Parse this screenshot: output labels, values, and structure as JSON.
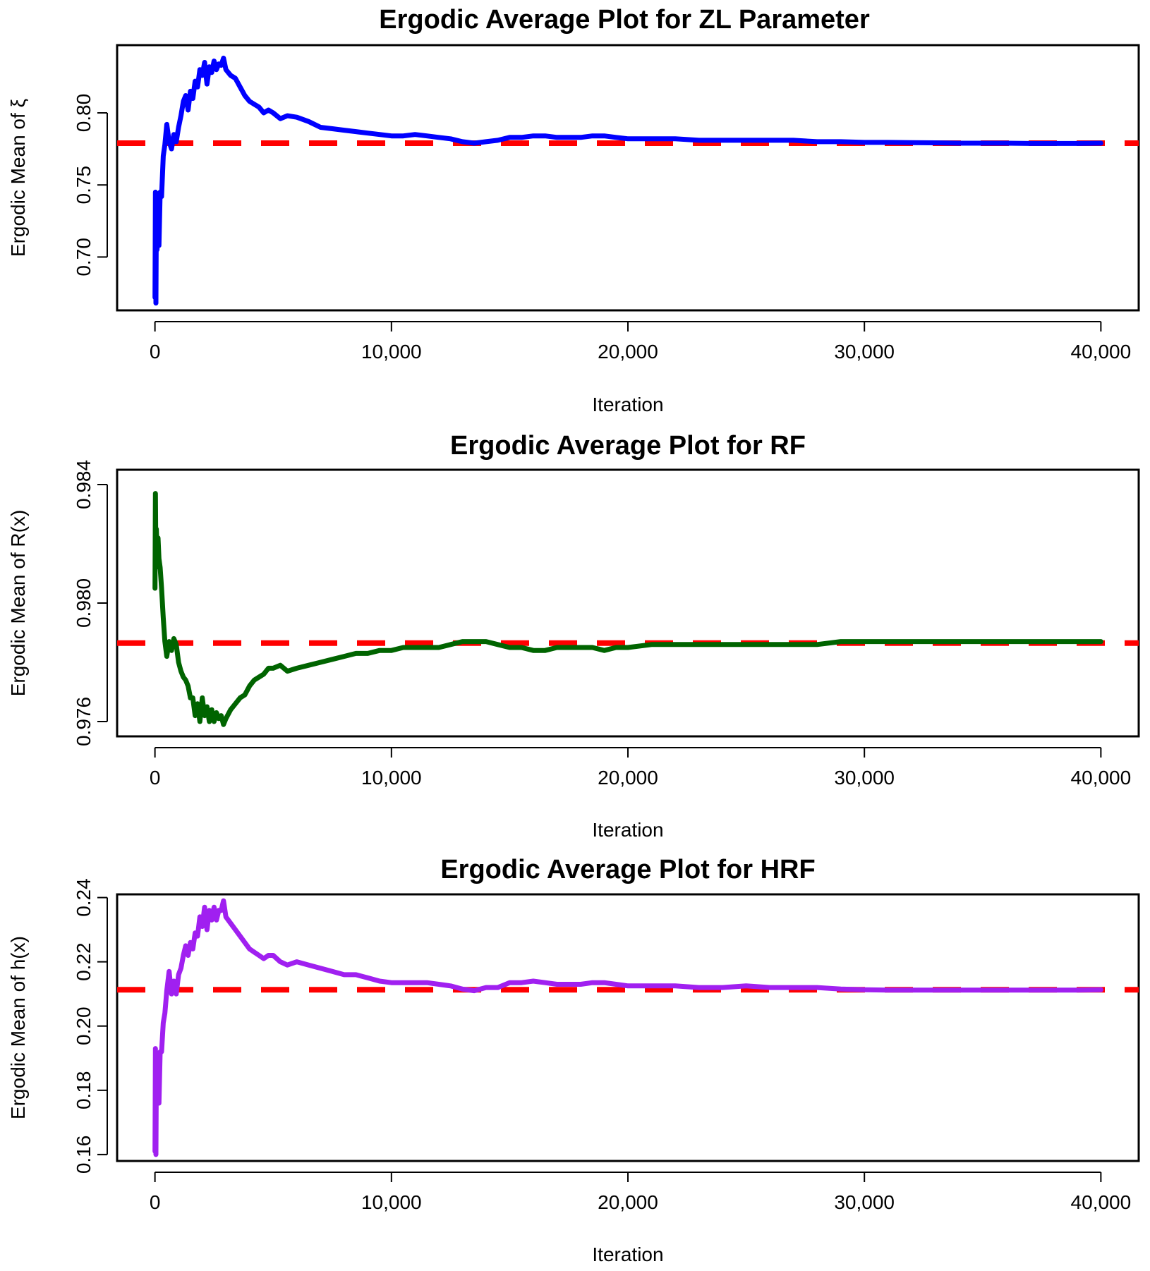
{
  "chart_data": [
    {
      "type": "line",
      "title": "Ergodic Average Plot for ZL Parameter",
      "xlabel": "Iteration",
      "ylabel": "Ergodic Mean of ξ",
      "xlim": [
        -1600,
        41600
      ],
      "ylim": [
        0.663,
        0.847
      ],
      "xticks": [
        0,
        10000,
        20000,
        30000,
        40000
      ],
      "xtick_labels": [
        "0",
        "10,000",
        "20,000",
        "30,000",
        "40,000"
      ],
      "yticks": [
        0.7,
        0.75,
        0.8
      ],
      "ytick_labels": [
        "0.70",
        "0.75",
        "0.80"
      ],
      "grid": false,
      "series": [
        {
          "name": "ergodic mean",
          "color": "#0000ff",
          "x": [
            1,
            20,
            40,
            60,
            90,
            130,
            170,
            220,
            280,
            350,
            420,
            500,
            600,
            700,
            800,
            900,
            1000,
            1100,
            1200,
            1300,
            1400,
            1500,
            1600,
            1700,
            1800,
            1900,
            2000,
            2100,
            2200,
            2300,
            2400,
            2500,
            2600,
            2700,
            2800,
            2900,
            3000,
            3200,
            3400,
            3600,
            3800,
            4000,
            4200,
            4400,
            4600,
            4800,
            5000,
            5300,
            5600,
            6000,
            6500,
            7000,
            7500,
            8000,
            8500,
            9000,
            9500,
            10000,
            10500,
            11000,
            11500,
            12000,
            12500,
            13000,
            13500,
            14000,
            14500,
            15000,
            15500,
            16000,
            16500,
            17000,
            17500,
            18000,
            18500,
            19000,
            19500,
            20000,
            21000,
            22000,
            23000,
            24000,
            25000,
            26000,
            27000,
            28000,
            29000,
            30000,
            31000,
            32000,
            33000,
            34000,
            35000,
            36000,
            37000,
            38000,
            39000,
            40000
          ],
          "values": [
            0.672,
            0.745,
            0.668,
            0.73,
            0.705,
            0.728,
            0.708,
            0.745,
            0.742,
            0.77,
            0.778,
            0.792,
            0.78,
            0.775,
            0.785,
            0.78,
            0.79,
            0.798,
            0.808,
            0.812,
            0.802,
            0.815,
            0.81,
            0.822,
            0.818,
            0.83,
            0.826,
            0.835,
            0.82,
            0.832,
            0.828,
            0.836,
            0.83,
            0.834,
            0.833,
            0.838,
            0.83,
            0.826,
            0.824,
            0.818,
            0.812,
            0.808,
            0.806,
            0.804,
            0.8,
            0.802,
            0.8,
            0.796,
            0.798,
            0.797,
            0.794,
            0.79,
            0.789,
            0.788,
            0.787,
            0.786,
            0.785,
            0.784,
            0.784,
            0.785,
            0.784,
            0.783,
            0.782,
            0.78,
            0.779,
            0.78,
            0.781,
            0.783,
            0.783,
            0.784,
            0.784,
            0.783,
            0.783,
            0.783,
            0.784,
            0.784,
            0.783,
            0.782,
            0.782,
            0.782,
            0.781,
            0.781,
            0.781,
            0.781,
            0.781,
            0.78,
            0.78,
            0.7795,
            0.7795,
            0.7793,
            0.7792,
            0.779,
            0.779,
            0.779,
            0.7788,
            0.7788,
            0.7788,
            0.779
          ]
        }
      ],
      "reference_line": {
        "value": 0.779,
        "color": "#ff0000",
        "style": "dashed"
      }
    },
    {
      "type": "line",
      "title": "Ergodic Average Plot for RF",
      "xlabel": "Iteration",
      "ylabel": "Ergodic Mean of R(x)",
      "xlim": [
        -1600,
        41600
      ],
      "ylim": [
        0.9755,
        0.9845
      ],
      "xticks": [
        0,
        10000,
        20000,
        30000,
        40000
      ],
      "xtick_labels": [
        "0",
        "10,000",
        "20,000",
        "30,000",
        "40,000"
      ],
      "yticks": [
        0.976,
        0.98,
        0.984
      ],
      "ytick_labels": [
        "0.976",
        "0.980",
        "0.984"
      ],
      "grid": false,
      "series": [
        {
          "name": "ergodic mean",
          "color": "#006400",
          "x": [
            1,
            20,
            40,
            60,
            90,
            130,
            170,
            220,
            280,
            350,
            420,
            500,
            600,
            700,
            800,
            900,
            1000,
            1100,
            1200,
            1300,
            1400,
            1500,
            1600,
            1700,
            1800,
            1900,
            2000,
            2100,
            2200,
            2300,
            2400,
            2500,
            2600,
            2700,
            2800,
            2900,
            3000,
            3200,
            3400,
            3600,
            3800,
            4000,
            4200,
            4400,
            4600,
            4800,
            5000,
            5300,
            5600,
            6000,
            6500,
            7000,
            7500,
            8000,
            8500,
            9000,
            9500,
            10000,
            10500,
            11000,
            11500,
            12000,
            12500,
            13000,
            13500,
            14000,
            14500,
            15000,
            15500,
            16000,
            16500,
            17000,
            17500,
            18000,
            18500,
            19000,
            19500,
            20000,
            21000,
            22000,
            23000,
            24000,
            25000,
            26000,
            27000,
            28000,
            29000,
            30000,
            31000,
            32000,
            33000,
            34000,
            35000,
            36000,
            37000,
            38000,
            39000,
            40000
          ],
          "values": [
            0.9805,
            0.9837,
            0.9812,
            0.9825,
            0.9818,
            0.9822,
            0.9815,
            0.9812,
            0.9805,
            0.9795,
            0.9787,
            0.9782,
            0.9787,
            0.9784,
            0.9788,
            0.9786,
            0.978,
            0.9777,
            0.9775,
            0.9774,
            0.9772,
            0.9768,
            0.9768,
            0.9762,
            0.9766,
            0.976,
            0.9768,
            0.9762,
            0.9765,
            0.976,
            0.9764,
            0.976,
            0.9763,
            0.9761,
            0.9762,
            0.9759,
            0.9761,
            0.9764,
            0.9766,
            0.9768,
            0.9769,
            0.9772,
            0.9774,
            0.9775,
            0.9776,
            0.9778,
            0.9778,
            0.9779,
            0.9777,
            0.9778,
            0.9779,
            0.978,
            0.9781,
            0.9782,
            0.9783,
            0.9783,
            0.9784,
            0.9784,
            0.9785,
            0.9785,
            0.9785,
            0.9785,
            0.9786,
            0.9787,
            0.9787,
            0.9787,
            0.9786,
            0.9785,
            0.9785,
            0.9784,
            0.9784,
            0.9785,
            0.9785,
            0.9785,
            0.9785,
            0.9784,
            0.9785,
            0.9785,
            0.9786,
            0.9786,
            0.9786,
            0.9786,
            0.9786,
            0.9786,
            0.9786,
            0.9786,
            0.9787,
            0.9787,
            0.9787,
            0.9787,
            0.9787,
            0.9787,
            0.9787,
            0.9787,
            0.9787,
            0.9787,
            0.9787,
            0.9787
          ]
        }
      ],
      "reference_line": {
        "value": 0.97865,
        "color": "#ff0000",
        "style": "dashed"
      }
    },
    {
      "type": "line",
      "title": "Ergodic Average Plot for HRF",
      "xlabel": "Iteration",
      "ylabel": "Ergodic Mean of h(x)",
      "xlim": [
        -1600,
        41600
      ],
      "ylim": [
        0.158,
        0.241
      ],
      "xticks": [
        0,
        10000,
        20000,
        30000,
        40000
      ],
      "xtick_labels": [
        "0",
        "10,000",
        "20,000",
        "30,000",
        "40,000"
      ],
      "yticks": [
        0.16,
        0.18,
        0.2,
        0.22,
        0.24
      ],
      "ytick_labels": [
        "0.16",
        "0.18",
        "0.20",
        "0.22",
        "0.24"
      ],
      "grid": false,
      "series": [
        {
          "name": "ergodic mean",
          "color": "#a020f0",
          "x": [
            1,
            20,
            40,
            60,
            90,
            130,
            170,
            220,
            280,
            350,
            420,
            500,
            600,
            700,
            800,
            900,
            1000,
            1100,
            1200,
            1300,
            1400,
            1500,
            1600,
            1700,
            1800,
            1900,
            2000,
            2100,
            2200,
            2300,
            2400,
            2500,
            2600,
            2700,
            2800,
            2900,
            3000,
            3200,
            3400,
            3600,
            3800,
            4000,
            4200,
            4400,
            4600,
            4800,
            5000,
            5300,
            5600,
            6000,
            6500,
            7000,
            7500,
            8000,
            8500,
            9000,
            9500,
            10000,
            10500,
            11000,
            11500,
            12000,
            12500,
            13000,
            13500,
            14000,
            14500,
            15000,
            15500,
            16000,
            16500,
            17000,
            17500,
            18000,
            18500,
            19000,
            19500,
            20000,
            21000,
            22000,
            23000,
            24000,
            25000,
            26000,
            27000,
            28000,
            29000,
            30000,
            31000,
            32000,
            33000,
            34000,
            35000,
            36000,
            37000,
            38000,
            39000,
            40000
          ],
          "values": [
            0.161,
            0.193,
            0.16,
            0.186,
            0.178,
            0.185,
            0.176,
            0.192,
            0.192,
            0.201,
            0.204,
            0.211,
            0.217,
            0.21,
            0.214,
            0.21,
            0.216,
            0.218,
            0.222,
            0.225,
            0.222,
            0.226,
            0.224,
            0.229,
            0.228,
            0.234,
            0.231,
            0.237,
            0.23,
            0.236,
            0.233,
            0.237,
            0.233,
            0.236,
            0.236,
            0.239,
            0.234,
            0.232,
            0.23,
            0.228,
            0.226,
            0.224,
            0.223,
            0.222,
            0.221,
            0.222,
            0.222,
            0.22,
            0.219,
            0.22,
            0.219,
            0.218,
            0.217,
            0.216,
            0.216,
            0.215,
            0.214,
            0.2135,
            0.2135,
            0.2135,
            0.2135,
            0.213,
            0.2125,
            0.2115,
            0.211,
            0.212,
            0.212,
            0.2135,
            0.2135,
            0.214,
            0.2135,
            0.213,
            0.213,
            0.213,
            0.2135,
            0.2135,
            0.213,
            0.2125,
            0.2125,
            0.2125,
            0.212,
            0.212,
            0.2125,
            0.212,
            0.212,
            0.212,
            0.2115,
            0.2113,
            0.2112,
            0.2112,
            0.2112,
            0.2112,
            0.2112,
            0.2112,
            0.2112,
            0.2112,
            0.2112,
            0.2113
          ]
        }
      ],
      "reference_line": {
        "value": 0.2113,
        "color": "#ff0000",
        "style": "dashed"
      }
    }
  ]
}
